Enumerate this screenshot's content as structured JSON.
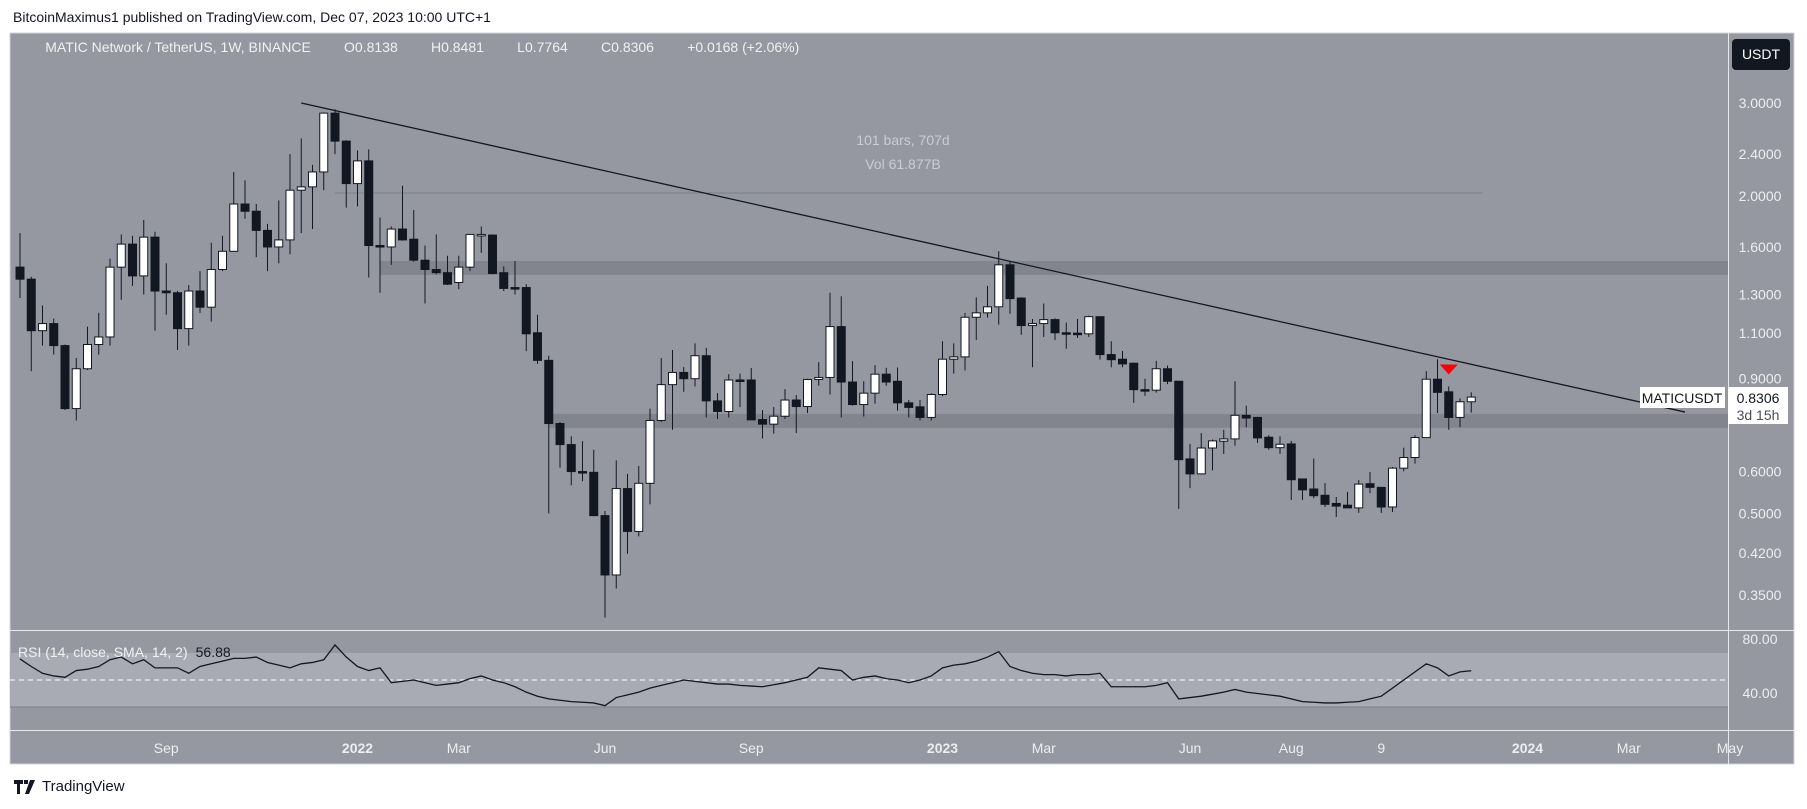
{
  "publish_line": "BitcoinMaximus1 published on TradingView.com, Dec 07, 2023 10:00 UTC+1",
  "legend": {
    "symbol": "MATIC Network / TetherUS, 1W, BINANCE",
    "open_label": "O",
    "open": "0.8138",
    "high_label": "H",
    "high": "0.8481",
    "low_label": "L",
    "low": "0.7764",
    "close_label": "C",
    "close": "0.8306",
    "change": "+0.0168 (+2.06%)"
  },
  "currency_button": "USDT",
  "measure": {
    "bars_text": "101 bars, 707d",
    "vol_text": "Vol 61.877B",
    "from_date": "2021-12-20",
    "to_date": "2023-12-04",
    "price": 2.025
  },
  "last_price_label": {
    "symbol": "MATICUSDT",
    "price": "0.8306",
    "countdown": "3d 15h"
  },
  "rsi": {
    "label": "RSI (14, close, SMA, 14, 2)",
    "value": "56.88",
    "tick_labels": [
      "80.00",
      "40.00"
    ]
  },
  "footer": {
    "brand": "TradingView"
  },
  "colors": {
    "panel": "#9598a1",
    "zone": "#82858e",
    "rsi_band": "#a9abb4",
    "bear": "#131722",
    "bull": "#ffffff",
    "marker": "#ff0000",
    "trendline": "#131722"
  },
  "chart_data": {
    "type": "candlestick",
    "interval": "1W",
    "start_date": "2021-06-07",
    "scale": "log",
    "ylim": [
      0.3,
      3.4
    ],
    "grid": false,
    "y_ticks": [
      3.0,
      2.4,
      2.0,
      1.6,
      1.3,
      1.1,
      0.9,
      0.6,
      0.5,
      0.42,
      0.35
    ],
    "y_tick_labels": [
      "3.0000",
      "2.4000",
      "2.0000",
      "1.6000",
      "1.3000",
      "1.1000",
      "0.9000",
      "0.6000",
      "0.5000",
      "0.4200",
      "0.3500"
    ],
    "x_ticks": [
      {
        "label": "Sep",
        "date": "2021-09-06"
      },
      {
        "label": "2022",
        "date": "2022-01-03",
        "bold": true
      },
      {
        "label": "Mar",
        "date": "2022-03-07"
      },
      {
        "label": "Jun",
        "date": "2022-06-06"
      },
      {
        "label": "Sep",
        "date": "2022-09-05"
      },
      {
        "label": "2023",
        "date": "2023-01-02",
        "bold": true
      },
      {
        "label": "Mar",
        "date": "2023-03-06"
      },
      {
        "label": "Jun",
        "date": "2023-06-05"
      },
      {
        "label": "Aug",
        "date": "2023-08-07"
      },
      {
        "label": "9",
        "date": "2023-10-02"
      },
      {
        "label": "2024",
        "date": "2024-01-01",
        "bold": true
      },
      {
        "label": "Mar",
        "date": "2024-03-04"
      },
      {
        "label": "May",
        "date": "2024-05-06"
      }
    ],
    "ohlc": [
      [
        1.465,
        1.7,
        1.28,
        1.39
      ],
      [
        1.39,
        1.405,
        0.93,
        1.11
      ],
      [
        1.11,
        1.24,
        1.04,
        1.145
      ],
      [
        1.145,
        1.17,
        1.0,
        1.04
      ],
      [
        1.04,
        1.045,
        0.785,
        0.79
      ],
      [
        0.79,
        0.985,
        0.75,
        0.94
      ],
      [
        0.94,
        1.13,
        0.935,
        1.045
      ],
      [
        1.045,
        1.2,
        1.0,
        1.08
      ],
      [
        1.08,
        1.52,
        1.04,
        1.465
      ],
      [
        1.465,
        1.69,
        1.27,
        1.62
      ],
      [
        1.62,
        1.68,
        1.35,
        1.41
      ],
      [
        1.41,
        1.8,
        1.3,
        1.67
      ],
      [
        1.67,
        1.71,
        1.11,
        1.32
      ],
      [
        1.32,
        1.49,
        1.19,
        1.31
      ],
      [
        1.31,
        1.32,
        1.02,
        1.12
      ],
      [
        1.12,
        1.355,
        1.04,
        1.32
      ],
      [
        1.32,
        1.44,
        1.2,
        1.23
      ],
      [
        1.23,
        1.63,
        1.155,
        1.45
      ],
      [
        1.45,
        1.68,
        1.44,
        1.57
      ],
      [
        1.57,
        2.22,
        1.565,
        1.93
      ],
      [
        1.93,
        2.14,
        1.81,
        1.87
      ],
      [
        1.87,
        1.93,
        1.53,
        1.72
      ],
      [
        1.72,
        1.77,
        1.44,
        1.6
      ],
      [
        1.6,
        1.96,
        1.49,
        1.65
      ],
      [
        1.65,
        2.4,
        1.55,
        2.05
      ],
      [
        2.05,
        2.57,
        1.7,
        2.08
      ],
      [
        2.08,
        2.29,
        1.73,
        2.22
      ],
      [
        2.22,
        2.88,
        2.05,
        2.87
      ],
      [
        2.87,
        2.92,
        2.4,
        2.54
      ],
      [
        2.54,
        2.55,
        1.9,
        2.11
      ],
      [
        2.11,
        2.44,
        1.91,
        2.33
      ],
      [
        2.33,
        2.45,
        1.4,
        1.61
      ],
      [
        1.61,
        1.82,
        1.31,
        1.6
      ],
      [
        1.6,
        1.75,
        1.48,
        1.73
      ],
      [
        1.73,
        2.09,
        1.645,
        1.65
      ],
      [
        1.655,
        1.88,
        1.5,
        1.51
      ],
      [
        1.51,
        1.61,
        1.25,
        1.45
      ],
      [
        1.45,
        1.69,
        1.42,
        1.43
      ],
      [
        1.43,
        1.54,
        1.355,
        1.36
      ],
      [
        1.37,
        1.54,
        1.33,
        1.465
      ],
      [
        1.465,
        1.69,
        1.44,
        1.69
      ],
      [
        1.69,
        1.75,
        1.56,
        1.69
      ],
      [
        1.685,
        1.69,
        1.42,
        1.425
      ],
      [
        1.43,
        1.47,
        1.32,
        1.335
      ],
      [
        1.34,
        1.505,
        1.3,
        1.335
      ],
      [
        1.34,
        1.36,
        1.015,
        1.095
      ],
      [
        1.1,
        1.19,
        0.96,
        0.975
      ],
      [
        0.975,
        0.995,
        0.5,
        0.74
      ],
      [
        0.74,
        0.745,
        0.61,
        0.675
      ],
      [
        0.675,
        0.7,
        0.565,
        0.6
      ],
      [
        0.6,
        0.685,
        0.575,
        0.598
      ],
      [
        0.598,
        0.66,
        0.495,
        0.495
      ],
      [
        0.495,
        0.505,
        0.317,
        0.382
      ],
      [
        0.382,
        0.63,
        0.36,
        0.557
      ],
      [
        0.557,
        0.594,
        0.419,
        0.462
      ],
      [
        0.462,
        0.615,
        0.452,
        0.57
      ],
      [
        0.57,
        0.79,
        0.52,
        0.75
      ],
      [
        0.75,
        0.985,
        0.745,
        0.877
      ],
      [
        0.877,
        1.02,
        0.72,
        0.925
      ],
      [
        0.925,
        0.947,
        0.85,
        0.9
      ],
      [
        0.9,
        1.05,
        0.87,
        0.995
      ],
      [
        0.995,
        1.03,
        0.76,
        0.817
      ],
      [
        0.817,
        0.845,
        0.755,
        0.78
      ],
      [
        0.78,
        0.918,
        0.76,
        0.895
      ],
      [
        0.895,
        0.92,
        0.795,
        0.893
      ],
      [
        0.895,
        0.943,
        0.752,
        0.752
      ],
      [
        0.753,
        0.785,
        0.693,
        0.738
      ],
      [
        0.738,
        0.795,
        0.708,
        0.764
      ],
      [
        0.764,
        0.86,
        0.755,
        0.82
      ],
      [
        0.82,
        0.838,
        0.71,
        0.797
      ],
      [
        0.797,
        0.9,
        0.775,
        0.897
      ],
      [
        0.897,
        0.968,
        0.873,
        0.905
      ],
      [
        0.905,
        1.31,
        0.84,
        1.13
      ],
      [
        1.13,
        1.29,
        0.76,
        0.887
      ],
      [
        0.887,
        0.972,
        0.8,
        0.804
      ],
      [
        0.804,
        0.89,
        0.763,
        0.845
      ],
      [
        0.845,
        0.955,
        0.807,
        0.918
      ],
      [
        0.918,
        0.944,
        0.873,
        0.887
      ],
      [
        0.89,
        0.945,
        0.783,
        0.81
      ],
      [
        0.81,
        0.82,
        0.76,
        0.794
      ],
      [
        0.796,
        0.82,
        0.75,
        0.76
      ],
      [
        0.76,
        0.845,
        0.75,
        0.84
      ],
      [
        0.84,
        1.06,
        0.834,
        0.98
      ],
      [
        0.98,
        1.05,
        0.92,
        0.99
      ],
      [
        0.99,
        1.2,
        0.933,
        1.177
      ],
      [
        1.177,
        1.284,
        1.066,
        1.2
      ],
      [
        1.2,
        1.35,
        1.175,
        1.232
      ],
      [
        1.232,
        1.57,
        1.14,
        1.48
      ],
      [
        1.48,
        1.5,
        1.195,
        1.277
      ],
      [
        1.28,
        1.284,
        1.09,
        1.135
      ],
      [
        1.135,
        1.168,
        0.946,
        1.145
      ],
      [
        1.145,
        1.25,
        1.08,
        1.165
      ],
      [
        1.165,
        1.172,
        1.065,
        1.1
      ],
      [
        1.1,
        1.15,
        1.026,
        1.098
      ],
      [
        1.098,
        1.168,
        1.075,
        1.095
      ],
      [
        1.095,
        1.185,
        1.08,
        1.18
      ],
      [
        1.18,
        1.18,
        0.978,
        1.0
      ],
      [
        1.0,
        1.06,
        0.946,
        0.978
      ],
      [
        0.98,
        1.016,
        0.946,
        0.96
      ],
      [
        0.963,
        0.966,
        0.81,
        0.858
      ],
      [
        0.858,
        0.9,
        0.835,
        0.857
      ],
      [
        0.856,
        0.973,
        0.847,
        0.94
      ],
      [
        0.94,
        0.953,
        0.879,
        0.89
      ],
      [
        0.89,
        0.89,
        0.51,
        0.632
      ],
      [
        0.634,
        0.677,
        0.558,
        0.594
      ],
      [
        0.594,
        0.71,
        0.592,
        0.665
      ],
      [
        0.665,
        0.69,
        0.603,
        0.686
      ],
      [
        0.685,
        0.72,
        0.648,
        0.692
      ],
      [
        0.692,
        0.89,
        0.672,
        0.767
      ],
      [
        0.767,
        0.8,
        0.728,
        0.758
      ],
      [
        0.76,
        0.762,
        0.68,
        0.695
      ],
      [
        0.697,
        0.703,
        0.66,
        0.666
      ],
      [
        0.666,
        0.7,
        0.648,
        0.676
      ],
      [
        0.677,
        0.686,
        0.53,
        0.579
      ],
      [
        0.581,
        0.581,
        0.53,
        0.554
      ],
      [
        0.556,
        0.635,
        0.534,
        0.54
      ],
      [
        0.541,
        0.57,
        0.514,
        0.52
      ],
      [
        0.522,
        0.537,
        0.492,
        0.516
      ],
      [
        0.518,
        0.549,
        0.512,
        0.512
      ],
      [
        0.512,
        0.578,
        0.501,
        0.568
      ],
      [
        0.569,
        0.599,
        0.546,
        0.56
      ],
      [
        0.56,
        0.56,
        0.501,
        0.514
      ],
      [
        0.514,
        0.612,
        0.503,
        0.609
      ],
      [
        0.609,
        0.666,
        0.601,
        0.638
      ],
      [
        0.638,
        0.703,
        0.621,
        0.696
      ],
      [
        0.696,
        0.93,
        0.696,
        0.898
      ],
      [
        0.898,
        0.98,
        0.775,
        0.848
      ],
      [
        0.85,
        0.87,
        0.72,
        0.76
      ],
      [
        0.76,
        0.826,
        0.728,
        0.8138
      ],
      [
        0.8138,
        0.8481,
        0.7764,
        0.8306
      ]
    ],
    "zones": [
      {
        "from_date": "2022-01-17",
        "low": 1.416,
        "high": 1.505
      },
      {
        "from_date": "2022-05-02",
        "low": 0.726,
        "high": 0.772
      }
    ],
    "trendline": {
      "from": {
        "date": "2021-11-29",
        "price": 3.0
      },
      "to": {
        "date": "2024-04-08",
        "price": 0.778
      }
    },
    "marker": {
      "type": "down-triangle",
      "date": "2023-11-13"
    },
    "rsi": {
      "ylim": [
        20,
        90
      ],
      "band": [
        30,
        70
      ],
      "midline": 50,
      "ticks": [
        80,
        40
      ],
      "values": [
        65.6,
        60,
        55,
        53,
        52,
        57,
        58,
        60,
        65,
        67,
        62,
        65,
        59,
        59,
        59,
        55,
        60,
        62,
        64,
        66,
        66,
        67,
        63,
        61,
        59,
        62,
        63,
        65,
        76,
        67,
        60,
        57,
        59,
        48,
        49,
        50,
        48,
        46,
        47,
        48,
        51,
        53,
        50,
        48,
        45,
        41,
        38,
        36,
        35,
        34,
        33.5,
        33,
        31,
        37,
        39,
        41,
        44,
        46,
        48,
        50,
        49,
        48,
        47,
        47,
        46,
        45.5,
        45,
        46.5,
        48,
        50,
        52,
        59,
        58,
        57,
        50,
        52,
        53,
        51,
        50,
        48,
        50,
        53,
        59,
        61,
        62,
        64,
        67,
        71,
        60,
        57,
        55,
        54,
        54,
        53,
        54,
        54,
        55,
        45,
        45,
        45,
        45,
        46,
        48,
        36,
        37,
        38,
        39.5,
        41,
        43,
        41,
        40,
        39,
        38,
        36,
        34,
        33.5,
        33,
        33,
        33.5,
        34,
        36,
        38,
        44,
        50,
        56,
        62,
        59,
        53,
        56,
        56.88
      ]
    }
  }
}
